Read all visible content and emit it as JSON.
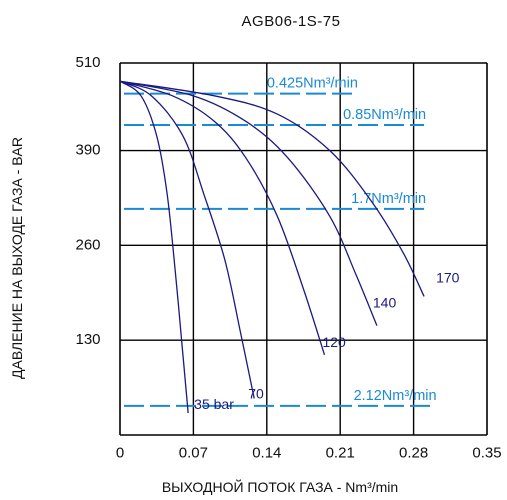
{
  "chart_data": {
    "type": "line",
    "title": "AGB06-1S-75",
    "xlabel": "ВЫХОДНОЙ ПОТОК ГАЗА - Nm³/min",
    "ylabel": "ДАВЛЕНИЕ НА ВЫХОДЕ ГАЗА - BAR",
    "xlim": [
      0,
      0.35
    ],
    "ylim": [
      0,
      510
    ],
    "x_ticks": [
      "0",
      "0.07",
      "0.14",
      "0.21",
      "0.28",
      "0.35"
    ],
    "y_ticks": [
      "130",
      "260",
      "390",
      "510"
    ],
    "grid": true,
    "curve_color": "#1a1a80",
    "flow_color": "#1a8ad4",
    "series": [
      {
        "name": "35 bar",
        "points": [
          [
            0,
            485
          ],
          [
            0.02,
            465
          ],
          [
            0.035,
            410
          ],
          [
            0.045,
            330
          ],
          [
            0.053,
            220
          ],
          [
            0.06,
            110
          ],
          [
            0.065,
            30
          ]
        ]
      },
      {
        "name": "70",
        "points": [
          [
            0,
            485
          ],
          [
            0.03,
            465
          ],
          [
            0.06,
            410
          ],
          [
            0.08,
            330
          ],
          [
            0.1,
            240
          ],
          [
            0.115,
            140
          ],
          [
            0.128,
            50
          ]
        ]
      },
      {
        "name": "120",
        "points": [
          [
            0,
            485
          ],
          [
            0.05,
            465
          ],
          [
            0.09,
            430
          ],
          [
            0.12,
            380
          ],
          [
            0.15,
            300
          ],
          [
            0.175,
            200
          ],
          [
            0.195,
            110
          ]
        ]
      },
      {
        "name": "140",
        "points": [
          [
            0,
            485
          ],
          [
            0.07,
            465
          ],
          [
            0.12,
            430
          ],
          [
            0.16,
            380
          ],
          [
            0.2,
            300
          ],
          [
            0.225,
            220
          ],
          [
            0.245,
            150
          ]
        ]
      },
      {
        "name": "170",
        "points": [
          [
            0,
            485
          ],
          [
            0.09,
            465
          ],
          [
            0.15,
            440
          ],
          [
            0.2,
            390
          ],
          [
            0.24,
            320
          ],
          [
            0.27,
            250
          ],
          [
            0.29,
            190
          ]
        ]
      }
    ],
    "flow_lines": [
      {
        "label": "0.425Nm³/min",
        "y": 468,
        "x_start": 0,
        "x_end": 0.225
      },
      {
        "label": "0.85Nm³/min",
        "y": 425,
        "x_start": 0,
        "x_end": 0.29
      },
      {
        "label": "1.7Nm³/min",
        "y": 310,
        "x_start": 0,
        "x_end": 0.29
      },
      {
        "label": "2.12Nm³/min",
        "y": 40,
        "x_start": 0,
        "x_end": 0.3
      }
    ]
  }
}
